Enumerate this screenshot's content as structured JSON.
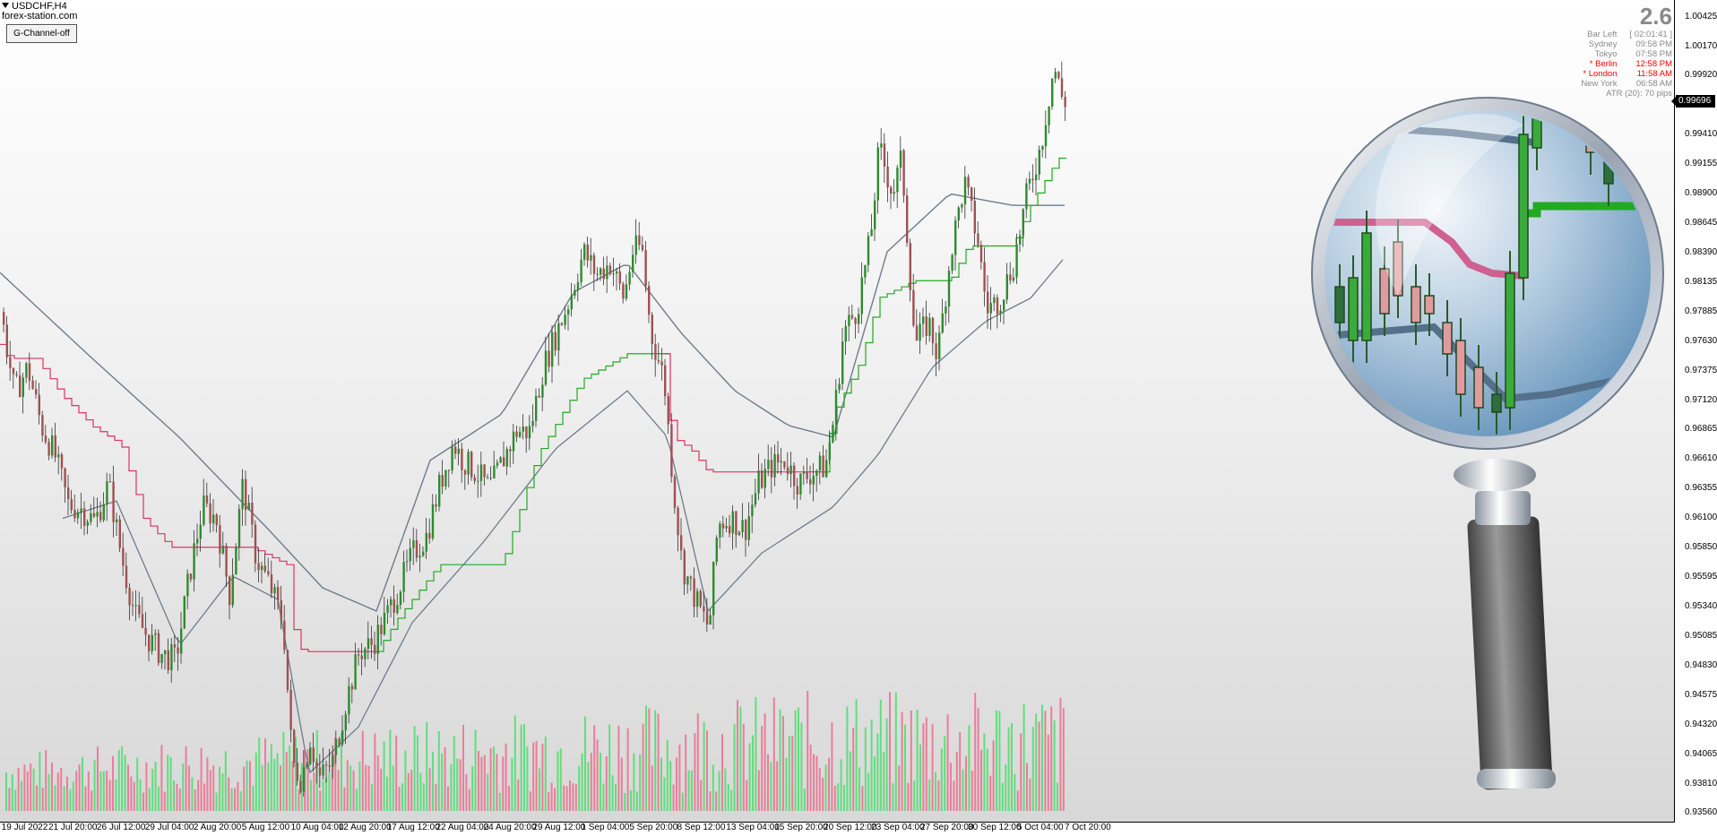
{
  "chart": {
    "symbol_title": "USDCHF,H4",
    "source": "forex-station.com",
    "button_label": "G-Channel-off"
  },
  "info_panel": {
    "big_value": "2.6",
    "rows": [
      {
        "label": "Bar Left",
        "value": "[ 02:01:41 ]",
        "highlight": false
      },
      {
        "label": "Sydney",
        "value": "09:58 PM",
        "highlight": false
      },
      {
        "label": "Tokyo",
        "value": "07:58 PM",
        "highlight": false
      },
      {
        "label": "* Berlin",
        "value": "12:58 PM",
        "highlight": true
      },
      {
        "label": "* London",
        "value": "11:58 AM",
        "highlight": true
      },
      {
        "label": "New York",
        "value": "06:58 AM",
        "highlight": false
      }
    ],
    "atr": "ATR (20): 70 pips"
  },
  "price_axis": {
    "labels": [
      "1.00425",
      "1.00170",
      "0.99920",
      "0.99410",
      "0.99155",
      "0.98900",
      "0.98645",
      "0.98390",
      "0.98135",
      "0.97885",
      "0.97630",
      "0.97375",
      "0.97120",
      "0.96865",
      "0.96610",
      "0.96355",
      "0.96100",
      "0.95850",
      "0.95595",
      "0.95340",
      "0.95085",
      "0.94830",
      "0.94575",
      "0.94320",
      "0.94065",
      "0.93810",
      "0.93560"
    ],
    "current_price": "0.99696"
  },
  "time_axis": {
    "labels": [
      "19 Jul 2022",
      "21 Jul 20:00",
      "26 Jul 12:00",
      "29 Jul 04:00",
      "2 Aug 20:00",
      "5 Aug 12:00",
      "10 Aug 04:00",
      "12 Aug 20:00",
      "17 Aug 12:00",
      "22 Aug 04:00",
      "24 Aug 20:00",
      "29 Aug 12:00",
      "1 Sep 04:00",
      "5 Sep 20:00",
      "8 Sep 12:00",
      "13 Sep 04:00",
      "15 Sep 20:00",
      "20 Sep 12:00",
      "23 Sep 04:00",
      "27 Sep 20:00",
      "30 Sep 12:00",
      "5 Oct 04:00",
      "7 Oct 20:00"
    ]
  },
  "colors": {
    "bull_body": "#2e8b2e",
    "bear_body": "#a05050",
    "channel_up": "#22aa22",
    "channel_down": "#dd3366",
    "moving_average": "#6e7c8c",
    "volume_up": "#44dd66",
    "volume_down": "#ee6688"
  },
  "chart_data": {
    "type": "candlestick",
    "price_anchors": [
      [
        0,
        0.9788
      ],
      [
        15,
        0.9718
      ],
      [
        30,
        0.974
      ],
      [
        45,
        0.969
      ],
      [
        60,
        0.9665
      ],
      [
        75,
        0.9622
      ],
      [
        90,
        0.9618
      ],
      [
        105,
        0.9607
      ],
      [
        120,
        0.964
      ],
      [
        135,
        0.9575
      ],
      [
        150,
        0.9525
      ],
      [
        165,
        0.9506
      ],
      [
        180,
        0.9492
      ],
      [
        195,
        0.9488
      ],
      [
        210,
        0.956
      ],
      [
        225,
        0.962
      ],
      [
        240,
        0.961
      ],
      [
        255,
        0.9545
      ],
      [
        270,
        0.964
      ],
      [
        285,
        0.9575
      ],
      [
        300,
        0.9552
      ],
      [
        315,
        0.952
      ],
      [
        325,
        0.94
      ],
      [
        335,
        0.9385
      ],
      [
        345,
        0.942
      ],
      [
        355,
        0.9385
      ],
      [
        370,
        0.94
      ],
      [
        385,
        0.9452
      ],
      [
        400,
        0.9495
      ],
      [
        415,
        0.9502
      ],
      [
        430,
        0.9525
      ],
      [
        445,
        0.9552
      ],
      [
        460,
        0.958
      ],
      [
        475,
        0.9595
      ],
      [
        490,
        0.964
      ],
      [
        505,
        0.9675
      ],
      [
        515,
        0.966
      ],
      [
        530,
        0.965
      ],
      [
        545,
        0.9635
      ],
      [
        560,
        0.966
      ],
      [
        575,
        0.9685
      ],
      [
        590,
        0.9685
      ],
      [
        605,
        0.974
      ],
      [
        620,
        0.977
      ],
      [
        635,
        0.98
      ],
      [
        650,
        0.984
      ],
      [
        665,
        0.982
      ],
      [
        680,
        0.983
      ],
      [
        695,
        0.98
      ],
      [
        705,
        0.984
      ],
      [
        715,
        0.9845
      ],
      [
        725,
        0.977
      ],
      [
        740,
        0.973
      ],
      [
        750,
        0.964
      ],
      [
        760,
        0.957
      ],
      [
        775,
        0.954
      ],
      [
        790,
        0.9515
      ],
      [
        800,
        0.9605
      ],
      [
        815,
        0.961
      ],
      [
        830,
        0.96
      ],
      [
        845,
        0.964
      ],
      [
        860,
        0.9655
      ],
      [
        875,
        0.966
      ],
      [
        890,
        0.964
      ],
      [
        905,
        0.965
      ],
      [
        920,
        0.9655
      ],
      [
        930,
        0.97
      ],
      [
        940,
        0.977
      ],
      [
        955,
        0.979
      ],
      [
        970,
        0.985
      ],
      [
        980,
        0.993
      ],
      [
        995,
        0.989
      ],
      [
        1005,
        0.992
      ],
      [
        1020,
        0.976
      ],
      [
        1035,
        0.978
      ],
      [
        1045,
        0.975
      ],
      [
        1060,
        0.984
      ],
      [
        1075,
        0.99
      ],
      [
        1090,
        0.985
      ],
      [
        1100,
        0.979
      ],
      [
        1115,
        0.98
      ],
      [
        1130,
        0.983
      ],
      [
        1145,
        0.989
      ],
      [
        1160,
        0.993
      ],
      [
        1175,
        1.0
      ],
      [
        1185,
        0.997
      ]
    ],
    "ma_anchors": [
      [
        0,
        0.9822
      ],
      [
        100,
        0.975
      ],
      [
        200,
        0.968
      ],
      [
        300,
        0.96
      ],
      [
        360,
        0.955
      ],
      [
        420,
        0.953
      ],
      [
        480,
        0.966
      ],
      [
        560,
        0.97
      ],
      [
        640,
        0.9805
      ],
      [
        700,
        0.983
      ],
      [
        760,
        0.977
      ],
      [
        820,
        0.972
      ],
      [
        880,
        0.969
      ],
      [
        930,
        0.968
      ],
      [
        990,
        0.984
      ],
      [
        1060,
        0.989
      ],
      [
        1130,
        0.988
      ]
    ],
    "ma2_anchors": [
      [
        70,
        0.961
      ],
      [
        130,
        0.9625
      ],
      [
        200,
        0.95
      ],
      [
        260,
        0.956
      ],
      [
        310,
        0.954
      ],
      [
        345,
        0.939
      ],
      [
        400,
        0.943
      ],
      [
        460,
        0.952
      ],
      [
        540,
        0.959
      ],
      [
        620,
        0.967
      ],
      [
        700,
        0.972
      ],
      [
        745,
        0.968
      ],
      [
        790,
        0.953
      ],
      [
        850,
        0.958
      ],
      [
        930,
        0.962
      ],
      [
        980,
        0.9665
      ],
      [
        1040,
        0.974
      ],
      [
        1100,
        0.978
      ],
      [
        1150,
        0.98
      ],
      [
        1188,
        0.9835
      ]
    ],
    "channel_anchors": [
      [
        0,
        0.976
      ],
      [
        10,
        0.9748
      ],
      [
        40,
        0.9748
      ],
      [
        70,
        0.9715
      ],
      [
        105,
        0.9688
      ],
      [
        135,
        0.9674
      ],
      [
        160,
        0.961
      ],
      [
        190,
        0.9585
      ],
      [
        210,
        0.9585
      ],
      [
        240,
        0.9585
      ],
      [
        280,
        0.9585
      ],
      [
        320,
        0.957
      ],
      [
        330,
        0.95
      ],
      [
        340,
        0.9495
      ],
      [
        420,
        0.9495
      ],
      [
        445,
        0.9525
      ],
      [
        490,
        0.957
      ],
      [
        560,
        0.957
      ],
      [
        600,
        0.9665
      ],
      [
        650,
        0.973
      ],
      [
        700,
        0.9752
      ],
      [
        740,
        0.9752
      ],
      [
        750,
        0.968
      ],
      [
        770,
        0.967
      ],
      [
        790,
        0.965
      ],
      [
        860,
        0.965
      ],
      [
        918,
        0.965
      ],
      [
        930,
        0.97
      ],
      [
        960,
        0.9745
      ],
      [
        980,
        0.98
      ],
      [
        1020,
        0.9815
      ],
      [
        1060,
        0.9815
      ],
      [
        1080,
        0.9845
      ],
      [
        1130,
        0.9845
      ],
      [
        1150,
        0.988
      ],
      [
        1180,
        0.992
      ],
      [
        1188,
        0.9923
      ]
    ],
    "channel_switch_x": [
      [
        0,
        330,
        "down"
      ],
      [
        330,
        330,
        "down"
      ],
      [
        420,
        420,
        "up"
      ],
      [
        740,
        740,
        "down"
      ],
      [
        918,
        918,
        "up"
      ]
    ],
    "volume_range": [
      0.05,
      1.0
    ]
  },
  "magnifier": {
    "description_icon": "magnifying-glass-icon"
  }
}
